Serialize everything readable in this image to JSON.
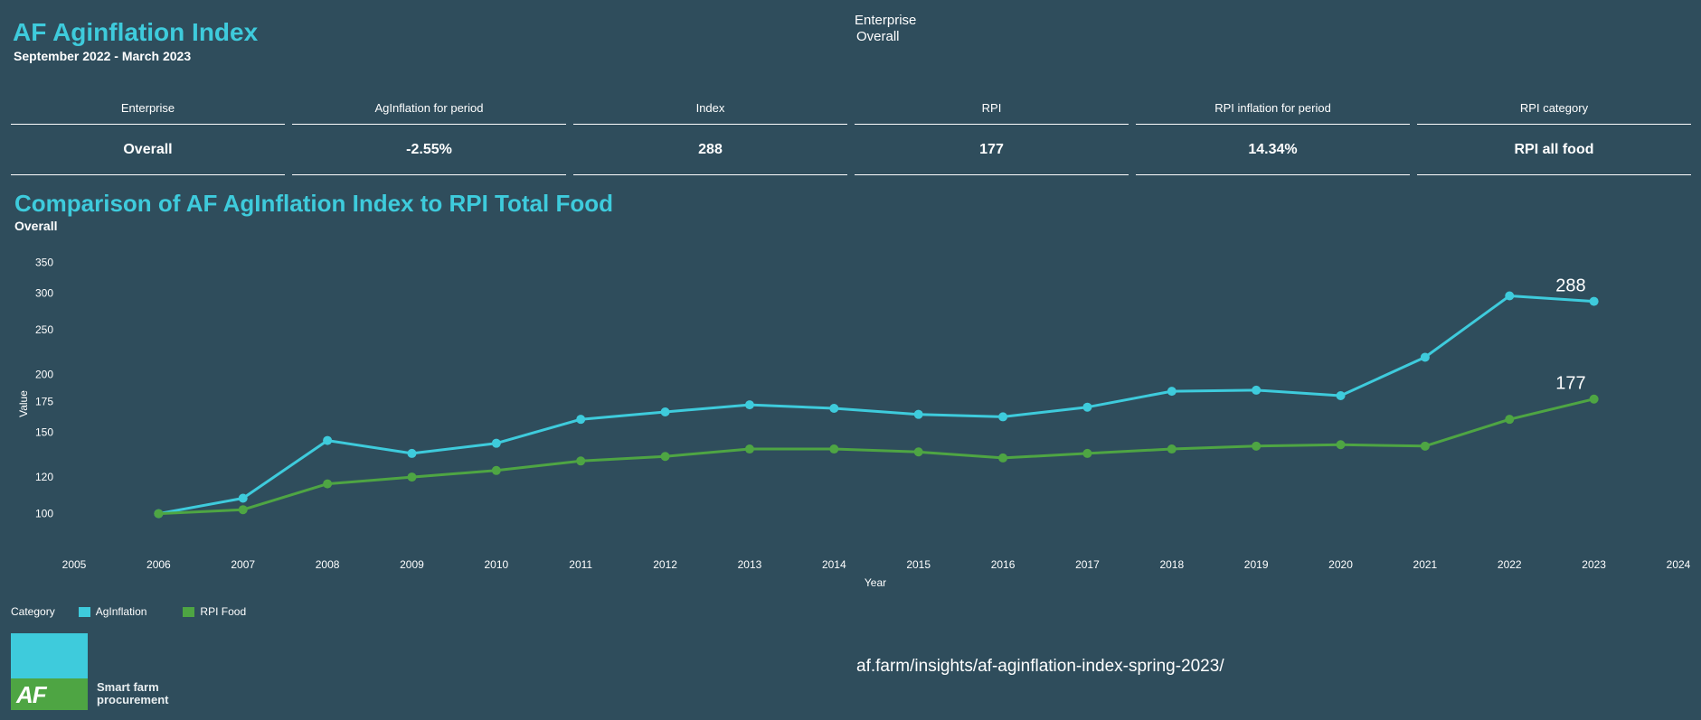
{
  "header": {
    "title": "AF Aginflation Index",
    "period": "September 2022 - March 2023"
  },
  "filter": {
    "label": "Enterprise",
    "value": "Overall"
  },
  "kpis": [
    {
      "label": "Enterprise",
      "value": "Overall"
    },
    {
      "label": "AgInflation for period",
      "value": "-2.55%"
    },
    {
      "label": "Index",
      "value": "288"
    },
    {
      "label": "RPI",
      "value": "177"
    },
    {
      "label": "RPI inflation for period",
      "value": "14.34%"
    },
    {
      "label": "RPI category",
      "value": "RPI all food"
    }
  ],
  "chart": {
    "title": "Comparison of AF AgInflation Index to RPI Total Food",
    "subtitle": "Overall"
  },
  "chart_data": {
    "type": "line",
    "xlabel": "Year",
    "ylabel": "Value",
    "y_scale": "log",
    "xlim": [
      2005,
      2024
    ],
    "ylim": [
      90,
      360
    ],
    "x_ticks": [
      "2005",
      "2006",
      "2007",
      "2008",
      "2009",
      "2010",
      "2011",
      "2012",
      "2013",
      "2014",
      "2015",
      "2016",
      "2017",
      "2018",
      "2019",
      "2020",
      "2021",
      "2022",
      "2023",
      "2024"
    ],
    "y_ticks": [
      100,
      120,
      150,
      175,
      200,
      250,
      300,
      350
    ],
    "x": [
      2006,
      2007,
      2008,
      2009,
      2010,
      2011,
      2012,
      2013,
      2014,
      2015,
      2016,
      2017,
      2018,
      2019,
      2020,
      2021,
      2022,
      2023
    ],
    "series": [
      {
        "name": "AgInflation",
        "color": "#3ecbdc",
        "values": [
          100,
          108,
          144,
          135,
          142,
          160,
          166,
          172,
          169,
          164,
          162,
          170,
          184,
          185,
          180,
          218,
          296,
          288
        ],
        "end_label": "288"
      },
      {
        "name": "RPI Food",
        "color": "#4ea543",
        "values": [
          100,
          102,
          116,
          120,
          124,
          130,
          133,
          138,
          138,
          136,
          132,
          135,
          138,
          140,
          141,
          140,
          160,
          177
        ],
        "end_label": "177"
      }
    ],
    "grid": false,
    "legend": {
      "title": "Category",
      "position": "bottom-left"
    }
  },
  "footer": {
    "logo_text": "AF",
    "tagline_1": "Smart farm",
    "tagline_2": "procurement",
    "url": "af.farm/insights/af-aginflation-index-spring-2023/"
  }
}
